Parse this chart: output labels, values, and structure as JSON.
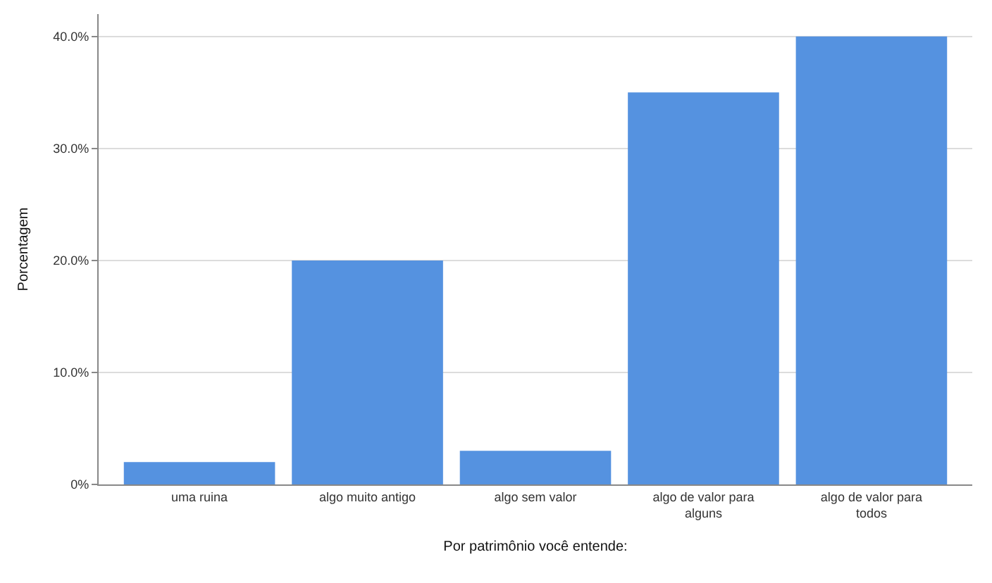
{
  "chart_data": {
    "type": "bar",
    "xlabel": "Por patrimônio você entende:",
    "ylabel": "Porcentagem",
    "categories": [
      "uma ruina",
      "algo muito antigo",
      "algo sem valor",
      "algo de valor para alguns",
      "algo de valor para todos"
    ],
    "values": [
      2.0,
      20.0,
      3.0,
      35.0,
      40.0
    ],
    "color": "#5592e0",
    "ylim": [
      0,
      42
    ],
    "yticks": [
      {
        "value": 0,
        "label": "0%"
      },
      {
        "value": 10,
        "label": "10.0%"
      },
      {
        "value": 20,
        "label": "20.0%"
      },
      {
        "value": 30,
        "label": "30.0%"
      },
      {
        "value": 40,
        "label": "40.0%"
      }
    ],
    "grid": "y"
  }
}
